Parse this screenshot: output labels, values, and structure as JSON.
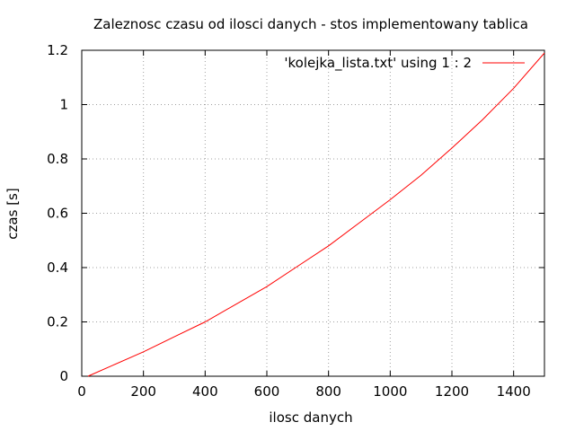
{
  "chart_data": {
    "type": "line",
    "title": "Zaleznosc czasu od ilosci danych - stos implementowany tablica",
    "xlabel": "ilosc danych",
    "ylabel": "czas [s]",
    "xlim": [
      0,
      1500
    ],
    "ylim": [
      0,
      1.2
    ],
    "xticks": [
      0,
      200,
      400,
      600,
      800,
      1000,
      1200,
      1400
    ],
    "yticks": [
      0,
      0.2,
      0.4,
      0.6,
      0.8,
      1,
      1.2
    ],
    "xtick_labels": [
      "0",
      "200",
      "400",
      "600",
      "800",
      "1000",
      "1200",
      "1400"
    ],
    "ytick_labels": [
      "0",
      "0.2",
      "0.4",
      "0.6",
      "0.8",
      "1",
      "1.2"
    ],
    "grid": true,
    "legend_position": "top-right",
    "series": [
      {
        "name": "'kolejka_lista.txt' using 1 : 2",
        "color": "#ff0000",
        "x": [
          20,
          100,
          200,
          300,
          400,
          500,
          600,
          700,
          800,
          900,
          1000,
          1100,
          1200,
          1300,
          1400,
          1500
        ],
        "y": [
          0.0,
          0.04,
          0.09,
          0.145,
          0.2,
          0.265,
          0.33,
          0.405,
          0.48,
          0.565,
          0.65,
          0.74,
          0.84,
          0.945,
          1.06,
          1.19
        ]
      }
    ]
  }
}
